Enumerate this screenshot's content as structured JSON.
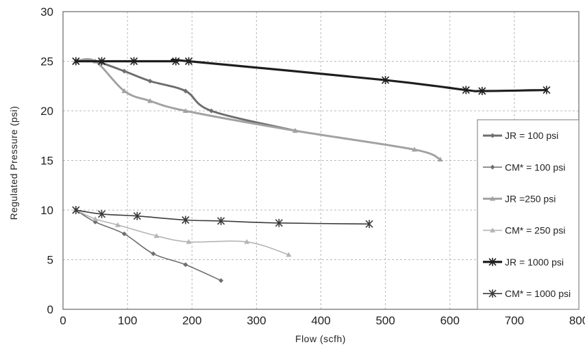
{
  "chart_data": {
    "type": "line",
    "title": "",
    "xlabel": "Flow (scfh)",
    "ylabel": "Regulated Pressure (psi)",
    "xlim": [
      0,
      800
    ],
    "ylim": [
      0,
      30
    ],
    "xticks": [
      "0",
      "100",
      "200",
      "300",
      "400",
      "500",
      "600",
      "700",
      "800"
    ],
    "yticks": [
      "0",
      "5",
      "10",
      "15",
      "20",
      "25",
      "30"
    ],
    "grid": true,
    "legend_position": "right",
    "series": [
      {
        "name": "JR = 100 psi",
        "color": "#6e6e6e",
        "width": 3,
        "marker": "diamond",
        "x": [
          20,
          50,
          95,
          135,
          190,
          230,
          360
        ],
        "y": [
          25,
          25,
          24,
          23,
          22,
          20,
          18
        ]
      },
      {
        "name": "CM* = 100 psi",
        "color": "#6e6e6e",
        "width": 1.6,
        "marker": "diamond",
        "x": [
          20,
          50,
          95,
          140,
          190,
          245
        ],
        "y": [
          10,
          8.8,
          7.6,
          5.6,
          4.5,
          2.9
        ]
      },
      {
        "name": "JR =250 psi",
        "color": "#a2a2a2",
        "width": 3,
        "marker": "triangle",
        "x": [
          20,
          50,
          95,
          135,
          190,
          360,
          545,
          585
        ],
        "y": [
          25,
          25,
          22,
          21,
          20,
          18,
          16.1,
          15.1
        ]
      },
      {
        "name": "CM* = 250 psi",
        "color": "#b4b4b4",
        "width": 1.6,
        "marker": "triangle",
        "x": [
          20,
          50,
          85,
          145,
          195,
          285,
          350
        ],
        "y": [
          10,
          9.1,
          8.5,
          7.4,
          6.8,
          6.8,
          5.5
        ]
      },
      {
        "name": "JR = 1000 psi",
        "color": "#1e1e1e",
        "width": 3.2,
        "marker": "star",
        "x": [
          20,
          60,
          110,
          175,
          195,
          500,
          625,
          650,
          750
        ],
        "y": [
          25,
          25,
          25,
          25,
          25,
          23.1,
          22.1,
          22,
          22.1
        ]
      },
      {
        "name": "CM* = 1000 psi",
        "color": "#3a3a3a",
        "width": 1.6,
        "marker": "star",
        "x": [
          20,
          60,
          115,
          190,
          245,
          335,
          475
        ],
        "y": [
          10,
          9.6,
          9.4,
          9,
          8.9,
          8.7,
          8.6
        ]
      }
    ]
  }
}
